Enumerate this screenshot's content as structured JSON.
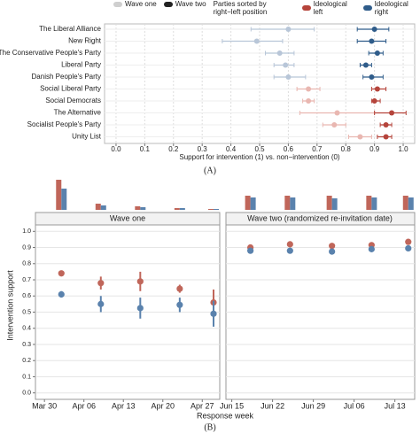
{
  "chart_data": [
    {
      "type": "dotwhisker",
      "legend": {
        "title": "Parties sorted by right−left position"
      },
      "categories": [
        "The Liberal Alliance",
        "New Right",
        "The Conservative People's Party",
        "Liberal Party",
        "Danish People's Party",
        "Social Liberal Party",
        "Social Democrats",
        "The Alternative",
        "Socialist People's Party",
        "Unity List"
      ],
      "ideology": {
        "labels": [
          "Ideological left",
          "Ideological right"
        ],
        "colors": [
          "#b5443b",
          "#2f5c8a"
        ]
      },
      "category_ideology": [
        1,
        1,
        1,
        1,
        1,
        0,
        0,
        0,
        0,
        0
      ],
      "series": [
        {
          "name": "Wave one",
          "legend_color": "#cfcfcf",
          "colors": [
            "#e9b7b1",
            "#b8c6d8"
          ],
          "values": [
            0.6,
            0.49,
            0.57,
            0.59,
            0.6,
            0.67,
            0.67,
            0.77,
            0.76,
            0.85
          ],
          "lower": [
            0.47,
            0.37,
            0.52,
            0.55,
            0.55,
            0.63,
            0.65,
            0.64,
            0.72,
            0.81
          ],
          "upper": [
            0.69,
            0.58,
            0.62,
            0.62,
            0.66,
            0.71,
            0.69,
            0.9,
            0.8,
            0.89
          ]
        },
        {
          "name": "Wave two",
          "legend_color": "#222222",
          "colors": [
            "#b5443b",
            "#2f5c8a"
          ],
          "values": [
            0.9,
            0.89,
            0.91,
            0.87,
            0.89,
            0.91,
            0.9,
            0.96,
            0.94,
            0.94
          ],
          "lower": [
            0.84,
            0.84,
            0.88,
            0.85,
            0.86,
            0.89,
            0.89,
            0.9,
            0.92,
            0.91
          ],
          "upper": [
            0.95,
            0.94,
            0.93,
            0.89,
            0.93,
            0.94,
            0.92,
            1.01,
            0.96,
            0.96
          ]
        }
      ],
      "xlim": [
        -0.04,
        1.04
      ],
      "xticks": [
        {
          "value": 0,
          "label": "0.0"
        },
        0.1,
        0.2,
        0.3,
        0.4,
        0.5,
        0.6,
        0.7,
        0.8,
        0.9,
        {
          "value": 1,
          "label": "1.0"
        }
      ],
      "xlabel": "Support for intervention (1) vs. non−intervention (0)",
      "caption": "(A)",
      "grid": true
    },
    {
      "type": "facet-points",
      "title": "Wave one",
      "ylabel": "Intervention support",
      "xlabel": "Response week",
      "caption": "(B)",
      "x": [
        93,
        100,
        107,
        114,
        120
      ],
      "xlim": [
        88.4,
        121.1
      ],
      "xticks": [
        {
          "value": 90,
          "label": "Mar 30"
        },
        {
          "value": 97,
          "label": "Apr 06"
        },
        {
          "value": 104,
          "label": "Apr 13"
        },
        {
          "value": 111,
          "label": "Apr 20"
        },
        {
          "value": 118,
          "label": "Apr 27"
        }
      ],
      "ylim": [
        -0.04,
        1.04
      ],
      "yticks": [
        {
          "value": 0,
          "label": "0.0"
        },
        0.1,
        0.2,
        0.3,
        0.4,
        0.5,
        0.6,
        0.7,
        0.8,
        0.9,
        {
          "value": 1,
          "label": "1.0"
        }
      ],
      "series": [
        {
          "color": "#c0665a",
          "values": [
            0.74,
            0.68,
            0.69,
            0.645,
            0.56
          ],
          "lower": [
            0.73,
            0.64,
            0.63,
            0.62,
            0.48
          ],
          "upper": [
            0.75,
            0.72,
            0.75,
            0.67,
            0.64
          ]
        },
        {
          "color": "#5a82ad",
          "values": [
            0.61,
            0.55,
            0.525,
            0.545,
            0.49
          ],
          "lower": [
            0.59,
            0.5,
            0.46,
            0.5,
            0.41
          ],
          "upper": [
            0.63,
            0.6,
            0.59,
            0.59,
            0.57
          ]
        }
      ],
      "histogram": [
        {
          "color": "#c0665a",
          "values": [
            34,
            7,
            4,
            2,
            1
          ]
        },
        {
          "color": "#5a82ad",
          "values": [
            24,
            5,
            3,
            2,
            1
          ]
        }
      ],
      "grid": true
    },
    {
      "type": "facet-points",
      "title": "Wave two (randomized re-invitation date)",
      "x": [
        170.2,
        177,
        184.2,
        191,
        197.3
      ],
      "xlim": [
        166,
        198.4
      ],
      "xticks": [
        {
          "value": 167,
          "label": "Jun 15"
        },
        {
          "value": 174,
          "label": "Jun 22"
        },
        {
          "value": 181,
          "label": "Jun 29"
        },
        {
          "value": 188,
          "label": "Jul 06"
        },
        {
          "value": 195,
          "label": "Jul 13"
        }
      ],
      "ylim": [
        -0.04,
        1.04
      ],
      "series": [
        {
          "color": "#c0665a",
          "values": [
            0.9,
            0.92,
            0.91,
            0.915,
            0.935
          ],
          "lower": [
            0.89,
            0.91,
            0.9,
            0.905,
            0.925
          ],
          "upper": [
            0.91,
            0.93,
            0.92,
            0.925,
            0.945
          ]
        },
        {
          "color": "#5a82ad",
          "values": [
            0.88,
            0.88,
            0.875,
            0.89,
            0.895
          ],
          "lower": [
            0.865,
            0.865,
            0.86,
            0.875,
            0.88
          ],
          "upper": [
            0.895,
            0.895,
            0.89,
            0.905,
            0.91
          ]
        }
      ],
      "histogram": [
        {
          "color": "#c0665a",
          "values": [
            16,
            16,
            16,
            16,
            16
          ]
        },
        {
          "color": "#5a82ad",
          "values": [
            14,
            14,
            13,
            14,
            14
          ]
        }
      ],
      "grid": true
    }
  ]
}
